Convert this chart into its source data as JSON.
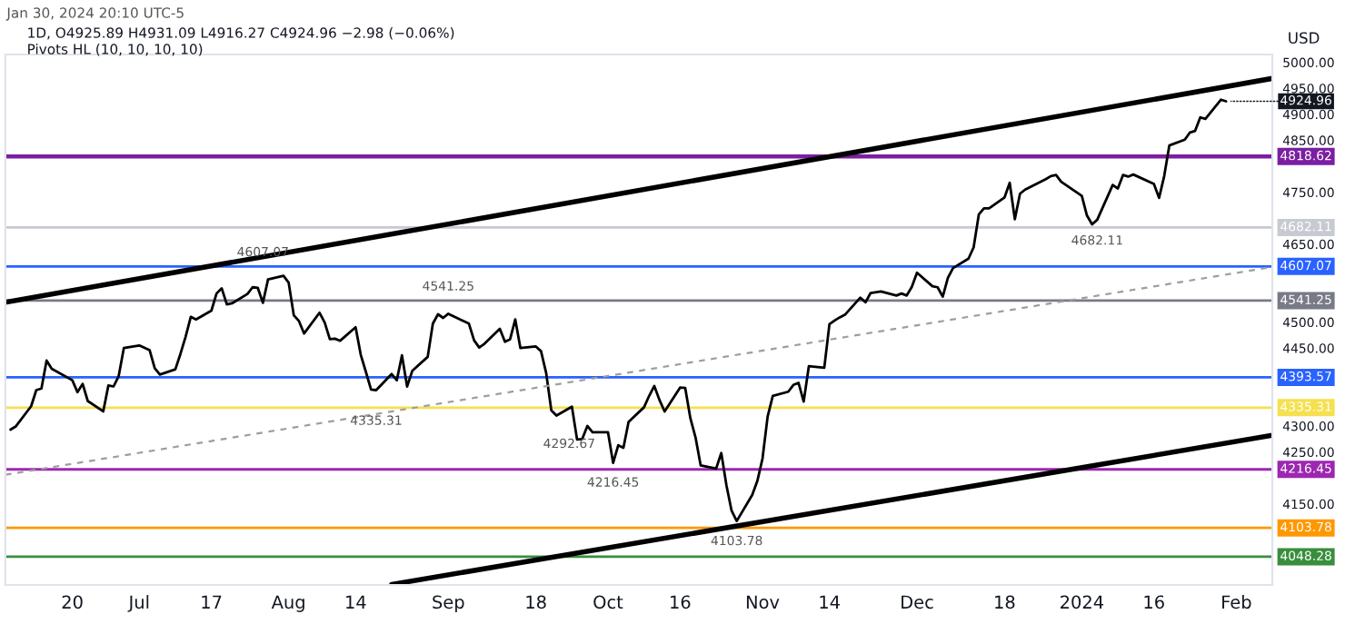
{
  "chart_data": {
    "type": "line",
    "title": "1D, O4925.89 H4931.09 L4916.27 C4924.96 −2.98 (−0.06%)",
    "subtitle": "Pivots HL (10, 10, 10, 10)",
    "ylabel": "USD",
    "xlim": [
      "2023-06-07",
      "2024-02-08"
    ],
    "xticks": [
      {
        "value": "2023-06-20",
        "label": "20"
      },
      {
        "value": "2023-07-03",
        "label": "Jul"
      },
      {
        "value": "2023-07-17",
        "label": "17"
      },
      {
        "value": "2023-08-01",
        "label": "Aug"
      },
      {
        "value": "2023-08-14",
        "label": "14"
      },
      {
        "value": "2023-09-01",
        "label": "Sep"
      },
      {
        "value": "2023-09-18",
        "label": "18"
      },
      {
        "value": "2023-10-02",
        "label": "Oct"
      },
      {
        "value": "2023-10-16",
        "label": "16"
      },
      {
        "value": "2023-11-01",
        "label": "Nov"
      },
      {
        "value": "2023-11-14",
        "label": "14"
      },
      {
        "value": "2023-12-01",
        "label": "Dec"
      },
      {
        "value": "2023-12-18",
        "label": "18"
      },
      {
        "value": "2024-01-02",
        "label": "2024"
      },
      {
        "value": "2024-01-16",
        "label": "16"
      },
      {
        "value": "2024-02-01",
        "label": "Feb"
      }
    ],
    "ylim": [
      3994,
      5015
    ],
    "yticks": [
      {
        "value": 4150,
        "label": "4150.00"
      },
      {
        "value": 4250,
        "label": "4250.00"
      },
      {
        "value": 4300,
        "label": "4300.00"
      },
      {
        "value": 4450,
        "label": "4450.00"
      },
      {
        "value": 4500,
        "label": "4500.00"
      },
      {
        "value": 4650,
        "label": "4650.00"
      },
      {
        "value": 4750,
        "label": "4750.00"
      },
      {
        "value": 4850,
        "label": "4850.00"
      },
      {
        "value": 4900,
        "label": "4900.00"
      },
      {
        "value": 4950,
        "label": "4950.00"
      },
      {
        "value": 5000,
        "label": "5000.00"
      }
    ],
    "grid": false,
    "series": [
      {
        "color": "#000000",
        "line_style": "solid",
        "x": [
          "2023-06-08",
          "2023-06-09",
          "2023-06-12",
          "2023-06-13",
          "2023-06-14",
          "2023-06-15",
          "2023-06-16",
          "2023-06-20",
          "2023-06-21",
          "2023-06-22",
          "2023-06-23",
          "2023-06-26",
          "2023-06-27",
          "2023-06-28",
          "2023-06-29",
          "2023-06-30",
          "2023-07-03",
          "2023-07-05",
          "2023-07-06",
          "2023-07-07",
          "2023-07-10",
          "2023-07-11",
          "2023-07-12",
          "2023-07-13",
          "2023-07-14",
          "2023-07-17",
          "2023-07-18",
          "2023-07-19",
          "2023-07-20",
          "2023-07-21",
          "2023-07-24",
          "2023-07-25",
          "2023-07-26",
          "2023-07-27",
          "2023-07-28",
          "2023-07-31",
          "2023-08-01",
          "2023-08-02",
          "2023-08-03",
          "2023-08-04",
          "2023-08-07",
          "2023-08-08",
          "2023-08-09",
          "2023-08-10",
          "2023-08-11",
          "2023-08-14",
          "2023-08-15",
          "2023-08-16",
          "2023-08-17",
          "2023-08-18",
          "2023-08-21",
          "2023-08-22",
          "2023-08-23",
          "2023-08-24",
          "2023-08-25",
          "2023-08-28",
          "2023-08-29",
          "2023-08-30",
          "2023-08-31",
          "2023-09-01",
          "2023-09-05",
          "2023-09-06",
          "2023-09-07",
          "2023-09-08",
          "2023-09-11",
          "2023-09-12",
          "2023-09-13",
          "2023-09-14",
          "2023-09-15",
          "2023-09-18",
          "2023-09-19",
          "2023-09-20",
          "2023-09-21",
          "2023-09-22",
          "2023-09-25",
          "2023-09-26",
          "2023-09-27",
          "2023-09-28",
          "2023-09-29",
          "2023-10-02",
          "2023-10-03",
          "2023-10-04",
          "2023-10-05",
          "2023-10-06",
          "2023-10-09",
          "2023-10-10",
          "2023-10-11",
          "2023-10-12",
          "2023-10-13",
          "2023-10-16",
          "2023-10-17",
          "2023-10-18",
          "2023-10-19",
          "2023-10-20",
          "2023-10-23",
          "2023-10-24",
          "2023-10-25",
          "2023-10-26",
          "2023-10-27",
          "2023-10-30",
          "2023-10-31",
          "2023-11-01",
          "2023-11-02",
          "2023-11-03",
          "2023-11-06",
          "2023-11-07",
          "2023-11-08",
          "2023-11-09",
          "2023-11-10",
          "2023-11-13",
          "2023-11-14",
          "2023-11-15",
          "2023-11-16",
          "2023-11-17",
          "2023-11-20",
          "2023-11-21",
          "2023-11-22",
          "2023-11-24",
          "2023-11-27",
          "2023-11-28",
          "2023-11-29",
          "2023-11-30",
          "2023-12-01",
          "2023-12-04",
          "2023-12-05",
          "2023-12-06",
          "2023-12-07",
          "2023-12-08",
          "2023-12-11",
          "2023-12-12",
          "2023-12-13",
          "2023-12-14",
          "2023-12-15",
          "2023-12-18",
          "2023-12-19",
          "2023-12-20",
          "2023-12-21",
          "2023-12-22",
          "2023-12-26",
          "2023-12-27",
          "2023-12-28",
          "2023-12-29",
          "2024-01-02",
          "2024-01-03",
          "2024-01-04",
          "2024-01-05",
          "2024-01-08",
          "2024-01-09",
          "2024-01-10",
          "2024-01-11",
          "2024-01-12",
          "2024-01-16",
          "2024-01-17",
          "2024-01-18",
          "2024-01-19",
          "2024-01-22",
          "2024-01-23",
          "2024-01-24",
          "2024-01-25",
          "2024-01-26",
          "2024-01-29",
          "2024-01-30"
        ],
        "values": [
          4293,
          4299,
          4338,
          4369,
          4372,
          4426,
          4410,
          4388,
          4365,
          4381,
          4348,
          4328,
          4378,
          4376,
          4396,
          4450,
          4455,
          4446,
          4411,
          4399,
          4409,
          4439,
          4472,
          4510,
          4505,
          4522,
          4555,
          4565,
          4534,
          4536,
          4554,
          4567,
          4566,
          4537,
          4582,
          4589,
          4576,
          4513,
          4502,
          4478,
          4518,
          4499,
          4467,
          4468,
          4464,
          4490,
          4437,
          4404,
          4370,
          4369,
          4400,
          4388,
          4436,
          4376,
          4406,
          4433,
          4497,
          4515,
          4508,
          4516,
          4497,
          4465,
          4451,
          4458,
          4487,
          4462,
          4467,
          4505,
          4450,
          4453,
          4444,
          4402,
          4330,
          4320,
          4337,
          4274,
          4275,
          4300,
          4288,
          4288,
          4229,
          4263,
          4258,
          4308,
          4336,
          4358,
          4377,
          4350,
          4328,
          4374,
          4373,
          4315,
          4278,
          4224,
          4218,
          4248,
          4186,
          4137,
          4117,
          4167,
          4194,
          4237,
          4318,
          4358,
          4366,
          4379,
          4383,
          4347,
          4415,
          4412,
          4496,
          4503,
          4509,
          4514,
          4547,
          4538,
          4556,
          4559,
          4551,
          4555,
          4551,
          4568,
          4595,
          4569,
          4567,
          4549,
          4585,
          4604,
          4622,
          4644,
          4707,
          4719,
          4719,
          4740,
          4768,
          4698,
          4747,
          4755,
          4775,
          4781,
          4783,
          4770,
          4743,
          4705,
          4688,
          4697,
          4764,
          4757,
          4783,
          4780,
          4784,
          4766,
          4739,
          4781,
          4840,
          4851,
          4865,
          4868,
          4894,
          4891,
          4928,
          4925
        ]
      },
      {
        "color": "#000000",
        "line_style": "solid",
        "x": [
          "2023-06-07",
          "2024-02-08"
        ],
        "values": [
          4538,
          4969
        ]
      },
      {
        "color": "#000000",
        "line_style": "solid",
        "x": [
          "2023-08-21",
          "2024-02-08"
        ],
        "values": [
          3995,
          4282
        ]
      },
      {
        "color": "#9e9e9e",
        "line_style": "dashed",
        "x": [
          "2023-06-07",
          "2024-02-08"
        ],
        "values": [
          4206,
          4606
        ]
      }
    ],
    "ref_lines": [
      {
        "axis": "y",
        "value": 4818.62,
        "label": "4818.62",
        "color": "#7b1fa2"
      },
      {
        "axis": "y",
        "value": 4682.11,
        "label": "4682.11",
        "color": "#c8cad2"
      },
      {
        "axis": "y",
        "value": 4607.07,
        "label": "4607.07",
        "color": "#2962ff"
      },
      {
        "axis": "y",
        "value": 4541.25,
        "label": "4541.25",
        "color": "#787b86"
      },
      {
        "axis": "y",
        "value": 4393.57,
        "label": "4393.57",
        "color": "#2962ff"
      },
      {
        "axis": "y",
        "value": 4335.31,
        "label": "4335.31",
        "color": "#f5e050"
      },
      {
        "axis": "y",
        "value": 4216.45,
        "label": "4216.45",
        "color": "#9c27b0"
      },
      {
        "axis": "y",
        "value": 4103.78,
        "label": "4103.78",
        "color": "#ff9800"
      },
      {
        "axis": "y",
        "value": 4048.28,
        "label": "4048.28",
        "color": "#388e3c"
      }
    ],
    "annotations": [
      "Jan 30, 2024 20:10 UTC-5",
      {
        "text": "4607.07",
        "x": "2023-07-27",
        "y": 4607.07
      },
      {
        "text": "4335.31",
        "x": "2023-08-18",
        "y": 4335.31
      },
      {
        "text": "4541.25",
        "x": "2023-09-01",
        "y": 4541.25
      },
      "4292.67",
      {
        "text": "4216.45",
        "x": "2023-10-03",
        "y": 4216.45
      },
      {
        "text": "4103.78",
        "x": "2023-10-27",
        "y": 4103.78
      },
      {
        "text": "4682.11",
        "x": "2024-01-05",
        "y": 4682.11
      },
      {
        "text": "4924.96",
        "x": "2024-01-30",
        "y": 4925
      }
    ]
  }
}
